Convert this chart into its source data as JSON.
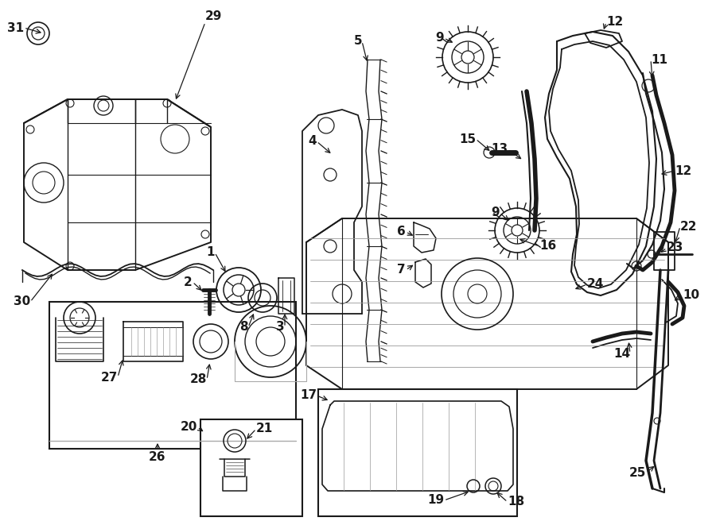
{
  "bg_color": "#ffffff",
  "line_color": "#1a1a1a",
  "fig_width": 9.0,
  "fig_height": 6.61,
  "dpi": 100,
  "label_fontsize": 11,
  "arrow_lw": 0.9,
  "draw_lw": 1.1
}
